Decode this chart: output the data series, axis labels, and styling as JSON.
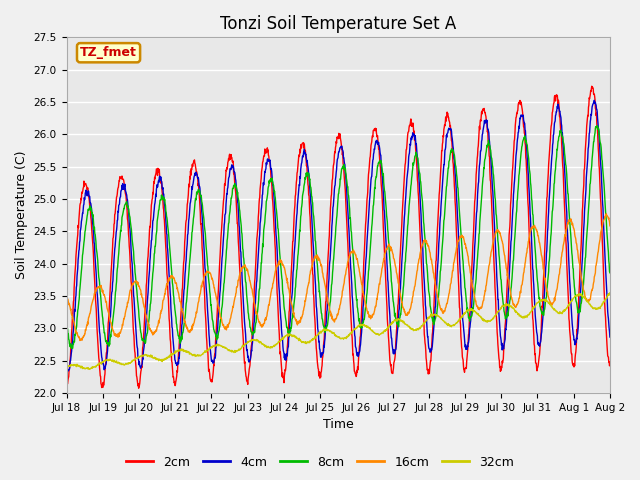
{
  "title": "Tonzi Soil Temperature Set A",
  "xlabel": "Time",
  "ylabel": "Soil Temperature (C)",
  "ylim": [
    22.0,
    27.5
  ],
  "yticks": [
    22.0,
    22.5,
    23.0,
    23.5,
    24.0,
    24.5,
    25.0,
    25.5,
    26.0,
    26.5,
    27.0,
    27.5
  ],
  "series_colors": {
    "2cm": "#ff0000",
    "4cm": "#0000cc",
    "8cm": "#00bb00",
    "16cm": "#ff8800",
    "32cm": "#cccc00"
  },
  "legend_label": "TZ_fmet",
  "legend_box_color": "#ffffcc",
  "legend_box_edge": "#cc8800",
  "plot_bg_color": "#e8e8e8",
  "fig_bg_color": "#f0f0f0",
  "xtick_labels": [
    "Jul 18",
    "Jul 19",
    "Jul 20",
    "Jul 21",
    "Jul 22",
    "Jul 23",
    "Jul 24",
    "Jul 25",
    "Jul 26",
    "Jul 27",
    "Jul 28",
    "Jul 29",
    "Jul 30",
    "Jul 31",
    "Aug 1",
    "Aug 2"
  ],
  "n_points": 1500,
  "title_fontsize": 12,
  "axis_label_fontsize": 9,
  "tick_fontsize": 7.5,
  "legend_fontsize": 9,
  "line_width": 1.0
}
